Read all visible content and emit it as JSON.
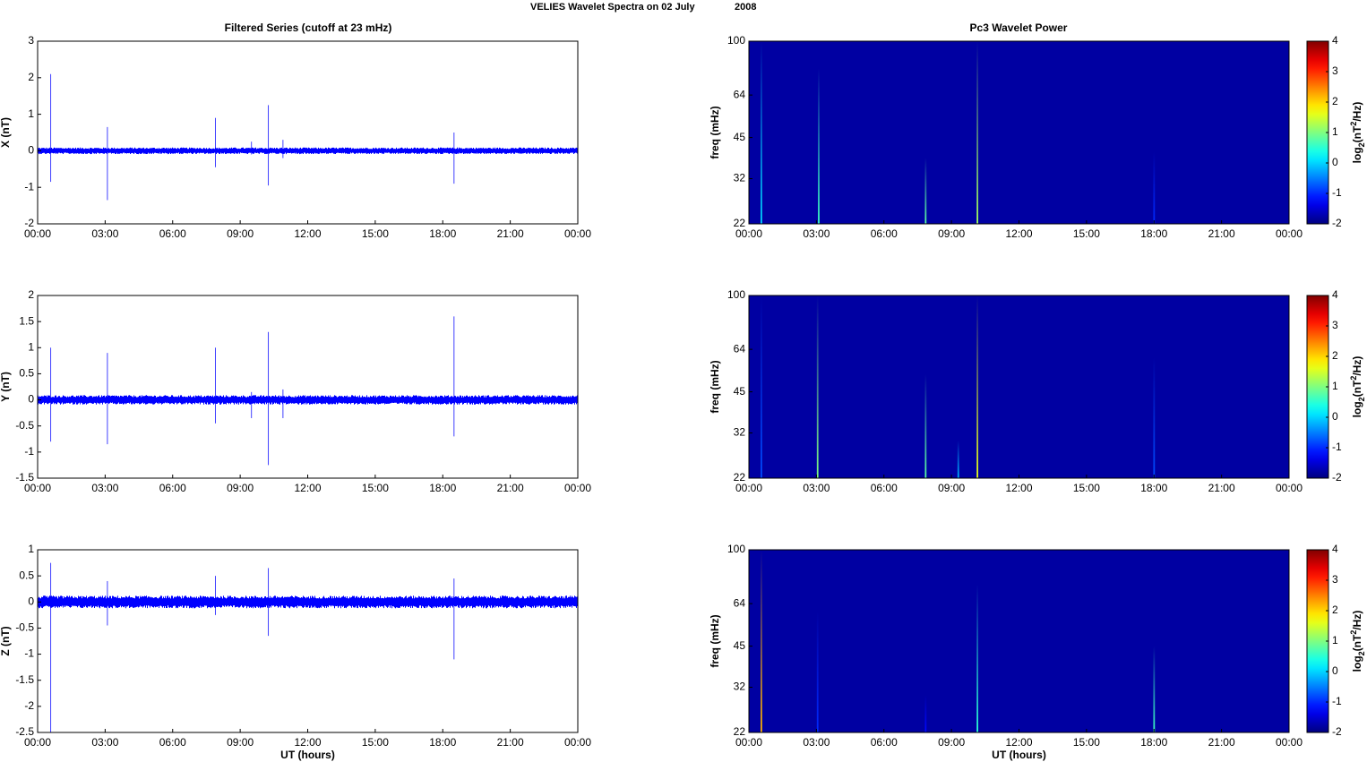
{
  "figure": {
    "suptitle_main": "VELIES Wavelet Spectra on 02 July",
    "suptitle_year": "2008",
    "left_title": "Filtered Series (cutoff at 23 mHz)",
    "right_title": "Pc3 Wavelet Power",
    "xlabel": "UT (hours)"
  },
  "chart_data": [
    {
      "type": "line",
      "title": "Filtered Series (cutoff at 23 mHz)",
      "xlabel": "",
      "ylabel": "X (nT)",
      "xticks": [
        "00:00",
        "03:00",
        "06:00",
        "09:00",
        "12:00",
        "15:00",
        "18:00",
        "21:00",
        "00:00"
      ],
      "xlim": [
        0,
        24
      ],
      "ylim": [
        -2,
        3
      ],
      "yticks": [
        "3",
        "2",
        "1",
        "0",
        "-1",
        "-2"
      ],
      "yticks_values": [
        3,
        2,
        1,
        0,
        -1,
        -2
      ],
      "line_color": "#0000ff",
      "noise_band": 0.09,
      "series": [
        {
          "values": [
            {
              "x": 0.58,
              "min": -0.85,
              "max": 2.1
            },
            {
              "x": 3.1,
              "min": -1.35,
              "max": 0.65
            },
            {
              "x": 7.9,
              "min": -0.45,
              "max": 0.9
            },
            {
              "x": 9.5,
              "min": -0.1,
              "max": 0.25
            },
            {
              "x": 10.25,
              "min": -0.95,
              "max": 1.25
            },
            {
              "x": 10.9,
              "min": -0.2,
              "max": 0.3
            },
            {
              "x": 18.5,
              "min": -0.9,
              "max": 0.5
            }
          ]
        }
      ]
    },
    {
      "type": "line",
      "xlabel": "",
      "ylabel": "Y (nT)",
      "xticks": [
        "00:00",
        "03:00",
        "06:00",
        "09:00",
        "12:00",
        "15:00",
        "18:00",
        "21:00",
        "00:00"
      ],
      "xlim": [
        0,
        24
      ],
      "ylim": [
        -1.5,
        2
      ],
      "yticks": [
        "2",
        "1.5",
        "1",
        "0.5",
        "0",
        "-0.5",
        "-1",
        "-1.5"
      ],
      "yticks_values": [
        2,
        1.5,
        1,
        0.5,
        0,
        -0.5,
        -1,
        -1.5
      ],
      "line_color": "#0000ff",
      "noise_band": 0.09,
      "series": [
        {
          "values": [
            {
              "x": 0.58,
              "min": -0.8,
              "max": 1.0
            },
            {
              "x": 3.1,
              "min": -0.85,
              "max": 0.9
            },
            {
              "x": 7.9,
              "min": -0.45,
              "max": 1.0
            },
            {
              "x": 9.5,
              "min": -0.35,
              "max": 0.15
            },
            {
              "x": 10.25,
              "min": -1.25,
              "max": 1.3
            },
            {
              "x": 10.9,
              "min": -0.35,
              "max": 0.2
            },
            {
              "x": 18.5,
              "min": -0.7,
              "max": 1.6
            }
          ]
        }
      ]
    },
    {
      "type": "line",
      "xlabel": "UT (hours)",
      "ylabel": "Z (nT)",
      "xticks": [
        "00:00",
        "03:00",
        "06:00",
        "09:00",
        "12:00",
        "15:00",
        "18:00",
        "21:00",
        "00:00"
      ],
      "xlim": [
        0,
        24
      ],
      "ylim": [
        -2.5,
        1
      ],
      "yticks": [
        "1",
        "0.5",
        "0",
        "-0.5",
        "-1",
        "-1.5",
        "-2",
        "-2.5"
      ],
      "yticks_values": [
        1,
        0.5,
        0,
        -0.5,
        -1,
        -1.5,
        -2,
        -2.5
      ],
      "line_color": "#0000ff",
      "noise_band": 0.12,
      "series": [
        {
          "values": [
            {
              "x": 0.58,
              "min": -2.5,
              "max": 0.75
            },
            {
              "x": 3.1,
              "min": -0.45,
              "max": 0.4
            },
            {
              "x": 7.9,
              "min": -0.25,
              "max": 0.5
            },
            {
              "x": 10.25,
              "min": -0.65,
              "max": 0.65
            },
            {
              "x": 18.5,
              "min": -1.1,
              "max": 0.45
            }
          ]
        }
      ]
    },
    {
      "type": "heatmap",
      "title": "Pc3 Wavelet Power",
      "xlabel": "",
      "ylabel": "freq (mHz)",
      "colorbar_label": "log2(nT^2/Hz)",
      "colorbar_ticks": [
        "4",
        "3",
        "2",
        "1",
        "0",
        "-1",
        "-2"
      ],
      "clim": [
        -2,
        4
      ],
      "xticks": [
        "00:00",
        "03:00",
        "06:00",
        "09:00",
        "12:00",
        "15:00",
        "18:00",
        "21:00",
        "00:00"
      ],
      "xlim": [
        0,
        24
      ],
      "yticks": [
        "100",
        "64",
        "45",
        "32",
        "22"
      ],
      "yticks_values": [
        100,
        64,
        45,
        32,
        22
      ],
      "ylim": [
        22,
        100
      ],
      "background_value": -1.8,
      "streaks": [
        {
          "x": 0.55,
          "fmax": 100,
          "value": 0.0
        },
        {
          "x": 3.1,
          "fmax": 80,
          "value": 0.6
        },
        {
          "x": 7.85,
          "fmax": 38,
          "value": 0.8
        },
        {
          "x": 10.15,
          "fmax": 100,
          "value": 1.2
        },
        {
          "x": 18.0,
          "fmax": 40,
          "value": -1.0
        }
      ]
    },
    {
      "type": "heatmap",
      "xlabel": "",
      "ylabel": "freq (mHz)",
      "colorbar_label": "log2(nT^2/Hz)",
      "colorbar_ticks": [
        "4",
        "3",
        "2",
        "1",
        "0",
        "-1",
        "-2"
      ],
      "clim": [
        -2,
        4
      ],
      "xticks": [
        "00:00",
        "03:00",
        "06:00",
        "09:00",
        "12:00",
        "15:00",
        "18:00",
        "21:00",
        "00:00"
      ],
      "xlim": [
        0,
        24
      ],
      "yticks": [
        "100",
        "64",
        "45",
        "32",
        "22"
      ],
      "yticks_values": [
        100,
        64,
        45,
        32,
        22
      ],
      "ylim": [
        22,
        100
      ],
      "background_value": -1.8,
      "streaks": [
        {
          "x": 0.55,
          "fmax": 100,
          "value": -0.8
        },
        {
          "x": 3.05,
          "fmax": 100,
          "value": 1.0
        },
        {
          "x": 7.85,
          "fmax": 52,
          "value": 0.8
        },
        {
          "x": 9.3,
          "fmax": 30,
          "value": -0.2
        },
        {
          "x": 10.15,
          "fmax": 100,
          "value": 1.6
        },
        {
          "x": 18.0,
          "fmax": 60,
          "value": -0.8
        }
      ]
    },
    {
      "type": "heatmap",
      "xlabel": "UT (hours)",
      "ylabel": "freq (mHz)",
      "colorbar_label": "log2(nT^2/Hz)",
      "colorbar_ticks": [
        "4",
        "3",
        "2",
        "1",
        "0",
        "-1",
        "-2"
      ],
      "clim": [
        -2,
        4
      ],
      "xticks": [
        "00:00",
        "03:00",
        "06:00",
        "09:00",
        "12:00",
        "15:00",
        "18:00",
        "21:00",
        "00:00"
      ],
      "xlim": [
        0,
        24
      ],
      "yticks": [
        "100",
        "64",
        "45",
        "32",
        "22"
      ],
      "yticks_values": [
        100,
        64,
        45,
        32,
        22
      ],
      "ylim": [
        22,
        100
      ],
      "background_value": -1.8,
      "streaks": [
        {
          "x": 0.55,
          "fmax": 100,
          "value": 2.2
        },
        {
          "x": 3.05,
          "fmax": 60,
          "value": -1.0
        },
        {
          "x": 7.85,
          "fmax": 30,
          "value": -1.2
        },
        {
          "x": 10.15,
          "fmax": 75,
          "value": 0.5
        },
        {
          "x": 18.0,
          "fmax": 45,
          "value": 0.6
        }
      ]
    }
  ]
}
